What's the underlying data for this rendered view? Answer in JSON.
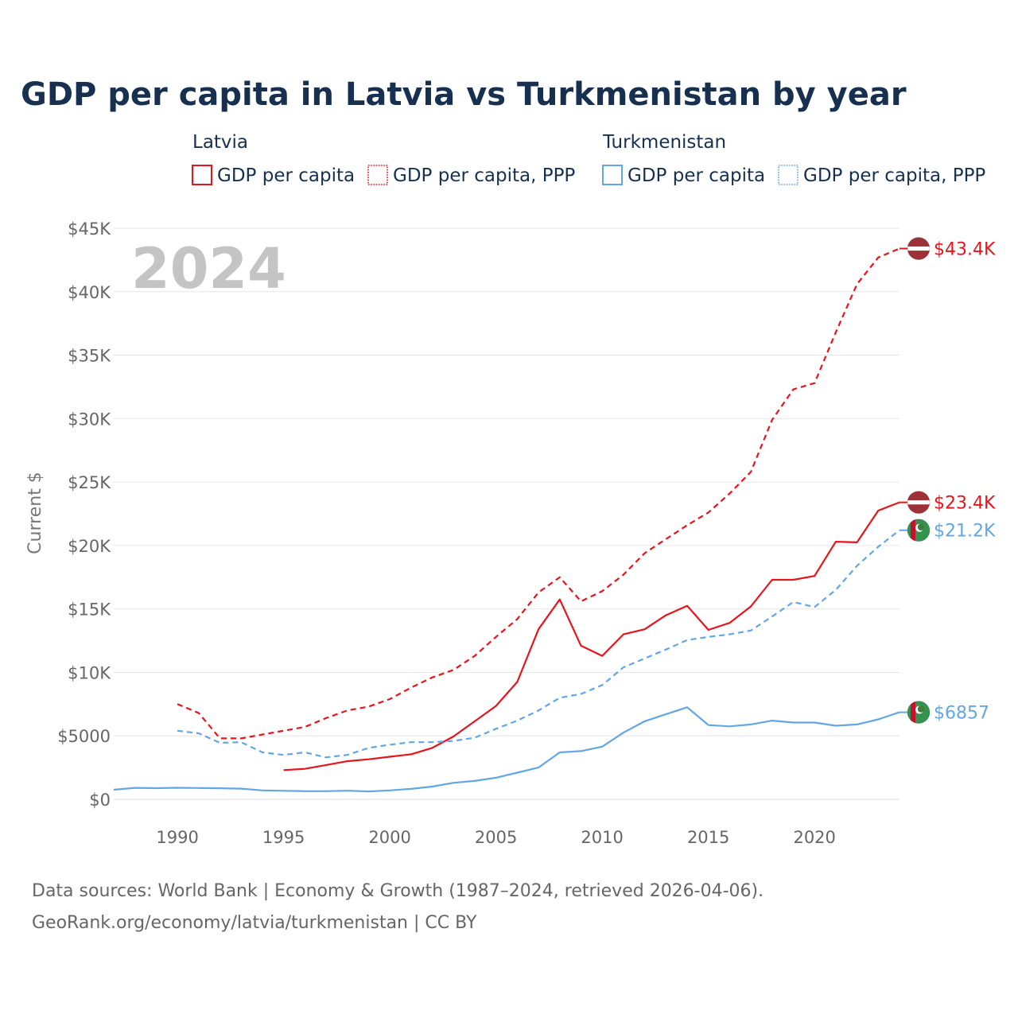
{
  "colors": {
    "latvia": "#e8141c",
    "turkmenistan": "#62a6e4",
    "title": "#17304f",
    "grid": "#e6e6e6",
    "tick": "#666666",
    "year_watermark": "#c4c4c4"
  },
  "legend": {
    "groups": [
      {
        "name": "Latvia",
        "items": [
          {
            "label": "GDP per capita",
            "style": "solid",
            "color": "#e8141c"
          },
          {
            "label": "GDP per capita, PPP",
            "style": "dotted",
            "color": "#e8141c"
          }
        ]
      },
      {
        "name": "Turkmenistan",
        "items": [
          {
            "label": "GDP per capita",
            "style": "solid",
            "color": "#62a6e4"
          },
          {
            "label": "GDP per capita, PPP",
            "style": "dotted",
            "color": "#62a6e4"
          }
        ]
      }
    ]
  },
  "footer": {
    "line1": "Data sources: World Bank | Economy & Growth (1987–2024, retrieved 2026-04-06).",
    "line2": "GeoRank.org/economy/latvia/turkmenistan | CC BY"
  },
  "chart_data": {
    "type": "line",
    "title": "GDP per capita in Latvia vs Turkmenistan by year",
    "year_label": "2024",
    "xlabel": "",
    "ylabel": "Current $",
    "xlim": [
      1987,
      2024
    ],
    "ylim": [
      0,
      45000
    ],
    "x_ticks": [
      1990,
      1995,
      2000,
      2005,
      2010,
      2015,
      2020
    ],
    "y_ticks": [
      0,
      5000,
      10000,
      15000,
      20000,
      25000,
      30000,
      35000,
      40000,
      45000
    ],
    "y_tick_labels": [
      "$0",
      "$5000",
      "$10K",
      "$15K",
      "$20K",
      "$25K",
      "$30K",
      "$35K",
      "$40K",
      "$45K"
    ],
    "grid": true,
    "series": [
      {
        "name": "Latvia GDP per capita, PPP",
        "country": "Latvia",
        "dash": true,
        "color": "#e8141c",
        "end_label": "$43.4K",
        "x": [
          1990,
          1991,
          1992,
          1993,
          1994,
          1995,
          1996,
          1997,
          1998,
          1999,
          2000,
          2001,
          2002,
          2003,
          2004,
          2005,
          2006,
          2007,
          2008,
          2009,
          2010,
          2011,
          2012,
          2013,
          2014,
          2015,
          2016,
          2017,
          2018,
          2019,
          2020,
          2021,
          2022,
          2023,
          2024
        ],
        "values": [
          7500,
          6800,
          4800,
          4800,
          5100,
          5400,
          5700,
          6400,
          7000,
          7300,
          7900,
          8800,
          9600,
          10200,
          11300,
          12800,
          14200,
          16300,
          17500,
          15600,
          16400,
          17700,
          19400,
          20500,
          21600,
          22600,
          24100,
          25800,
          29900,
          32300,
          32800,
          36800,
          40600,
          42700,
          43400
        ]
      },
      {
        "name": "Latvia GDP per capita",
        "country": "Latvia",
        "dash": false,
        "color": "#e8141c",
        "end_label": "$23.4K",
        "x": [
          1995,
          1996,
          1997,
          1998,
          1999,
          2000,
          2001,
          2002,
          2003,
          2004,
          2005,
          2006,
          2007,
          2008,
          2009,
          2010,
          2011,
          2012,
          2013,
          2014,
          2015,
          2016,
          2017,
          2018,
          2019,
          2020,
          2021,
          2022,
          2023,
          2024
        ],
        "values": [
          2300,
          2400,
          2700,
          3000,
          3150,
          3350,
          3550,
          4050,
          4950,
          6150,
          7350,
          9250,
          13400,
          15750,
          12100,
          11300,
          13000,
          13400,
          14500,
          15250,
          13350,
          13900,
          15200,
          17300,
          17300,
          17600,
          20300,
          20250,
          22750,
          23400
        ]
      },
      {
        "name": "Turkmenistan GDP per capita, PPP",
        "country": "Turkmenistan",
        "dash": true,
        "color": "#62a6e4",
        "end_label": "$21.2K",
        "x": [
          1990,
          1991,
          1992,
          1993,
          1994,
          1995,
          1996,
          1997,
          1998,
          1999,
          2000,
          2001,
          2002,
          2003,
          2004,
          2005,
          2006,
          2007,
          2008,
          2009,
          2010,
          2011,
          2012,
          2013,
          2014,
          2015,
          2016,
          2017,
          2018,
          2019,
          2020,
          2021,
          2022,
          2023,
          2024
        ],
        "values": [
          5400,
          5200,
          4450,
          4500,
          3700,
          3500,
          3700,
          3300,
          3500,
          4050,
          4300,
          4500,
          4500,
          4600,
          4850,
          5550,
          6200,
          7000,
          8000,
          8300,
          9000,
          10400,
          11100,
          11800,
          12550,
          12800,
          13000,
          13300,
          14400,
          15550,
          15150,
          16500,
          18400,
          19900,
          21200
        ]
      },
      {
        "name": "Turkmenistan GDP per capita",
        "country": "Turkmenistan",
        "dash": false,
        "color": "#62a6e4",
        "end_label": "$6857",
        "x": [
          1987,
          1988,
          1989,
          1990,
          1991,
          1992,
          1993,
          1994,
          1995,
          1996,
          1997,
          1998,
          1999,
          2000,
          2001,
          2002,
          2003,
          2004,
          2005,
          2006,
          2007,
          2008,
          2009,
          2010,
          2011,
          2012,
          2013,
          2014,
          2015,
          2016,
          2017,
          2018,
          2019,
          2020,
          2021,
          2022,
          2023,
          2024
        ],
        "values": [
          750,
          900,
          880,
          910,
          890,
          870,
          840,
          700,
          670,
          640,
          640,
          680,
          620,
          700,
          820,
          1000,
          1300,
          1450,
          1700,
          2100,
          2500,
          3700,
          3800,
          4150,
          5250,
          6150,
          6700,
          7250,
          5850,
          5750,
          5900,
          6200,
          6050,
          6050,
          5800,
          5900,
          6300,
          6857
        ]
      }
    ]
  }
}
